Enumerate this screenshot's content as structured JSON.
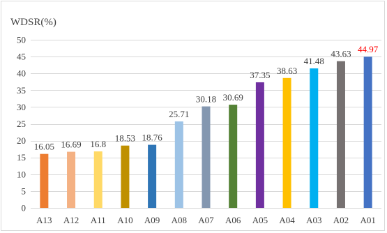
{
  "chart_data": {
    "type": "bar",
    "ylabel": "WDSR(%)",
    "xlabel": "",
    "ylim": [
      0,
      50
    ],
    "y_ticks": [
      0,
      5,
      10,
      15,
      20,
      25,
      30,
      35,
      40,
      45,
      50
    ],
    "grid": true,
    "legend": "none",
    "categories": [
      "A13",
      "A12",
      "A11",
      "A10",
      "A09",
      "A08",
      "A07",
      "A06",
      "A05",
      "A04",
      "A03",
      "A02",
      "A01"
    ],
    "values": [
      16.05,
      16.69,
      16.8,
      18.53,
      18.76,
      25.71,
      30.18,
      30.69,
      37.35,
      38.63,
      41.48,
      43.63,
      44.97
    ],
    "data_labels": [
      "16.05",
      "16.69",
      "16.8",
      "18.53",
      "18.76",
      "25.71",
      "30.18",
      "30.69",
      "37.35",
      "38.63",
      "41.48",
      "43.63",
      "44.97"
    ],
    "bar_colors": [
      "#ed7d31",
      "#f4b183",
      "#ffd966",
      "#bf9000",
      "#2e75b6",
      "#9dc3e6",
      "#8497b0",
      "#548235",
      "#7030a0",
      "#ffc000",
      "#00b0f0",
      "#767171",
      "#4472c4"
    ],
    "label_colors": [
      "#404040",
      "#404040",
      "#404040",
      "#404040",
      "#404040",
      "#404040",
      "#404040",
      "#404040",
      "#404040",
      "#404040",
      "#404040",
      "#404040",
      "#ff0000"
    ]
  }
}
